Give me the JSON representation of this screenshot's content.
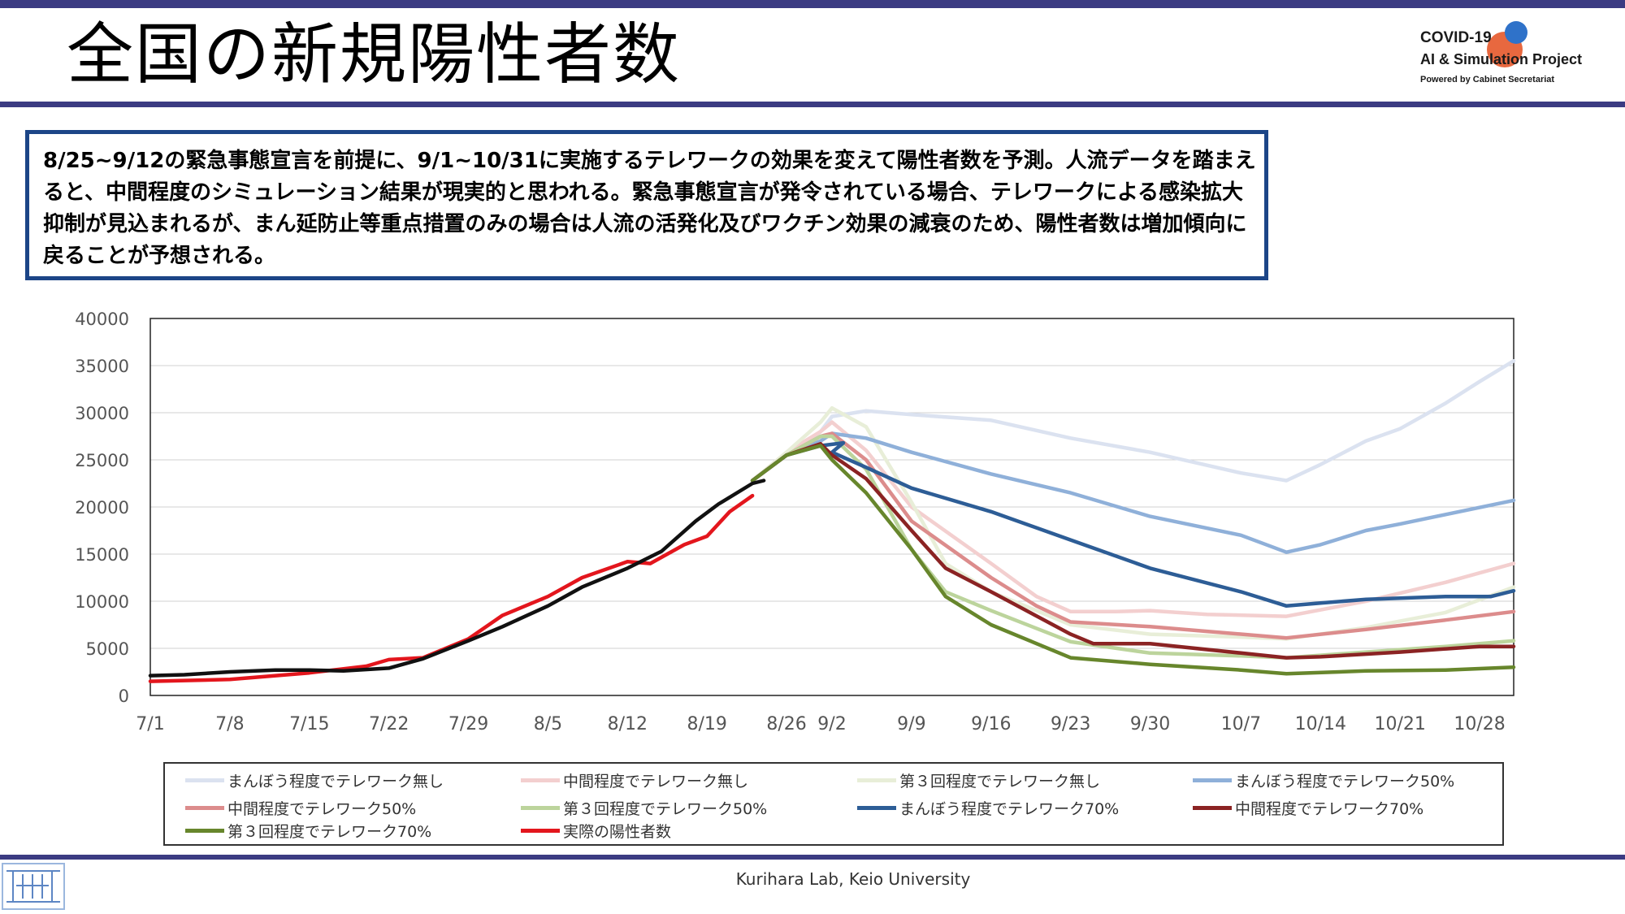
{
  "header": {
    "title": "全国の新規陽性者数",
    "brand_line1": "COVID-19",
    "brand_line2": "AI & Simulation Project",
    "brand_line3": "Powered by Cabinet Secretariat"
  },
  "summary": {
    "text": "8/25~9/12の緊急事態宣言を前提に、9/1~10/31に実施するテレワークの効果を変えて陽性者数を予測。人流データを踏まえると、中間程度のシミュレーション結果が現実的と思われる。緊急事態宣言が発令されている場合、テレワークによる感染拡大抑制が見込まれるが、まん延防止等重点措置のみの場合は人流の活発化及びワクチン効果の減衰のため、陽性者数は増加傾向に戻ることが予想される。"
  },
  "footer": {
    "text": "Kurihara Lab, Keio University"
  },
  "colors": {
    "band": "#3b3b82",
    "summary_border": "#1c4587",
    "brand_red": "#e8683f",
    "brand_blue": "#2f72c9"
  },
  "chart_data": {
    "type": "line",
    "x_start": "7/1",
    "x_end": "10/31",
    "x_ticks": [
      "7/1",
      "7/8",
      "7/15",
      "7/22",
      "7/29",
      "8/5",
      "8/12",
      "8/19",
      "8/26",
      "9/2",
      "9/9",
      "9/16",
      "9/23",
      "9/30",
      "10/7",
      "10/14",
      "10/21",
      "10/28"
    ],
    "ylim": [
      0,
      40000
    ],
    "y_ticks": [
      0,
      5000,
      10000,
      15000,
      20000,
      25000,
      30000,
      35000,
      40000
    ],
    "grid": true,
    "legend_position": "bottom",
    "series": [
      {
        "name": "まんぼう程度でテレワーク無し",
        "color": "#dbe2f0",
        "points": [
          [
            "8/23",
            22800
          ],
          [
            "8/26",
            25500
          ],
          [
            "8/29",
            28000
          ],
          [
            "9/2",
            29600
          ],
          [
            "9/5",
            30200
          ],
          [
            "9/9",
            29800
          ],
          [
            "9/16",
            29200
          ],
          [
            "9/23",
            27300
          ],
          [
            "9/30",
            25800
          ],
          [
            "10/7",
            23600
          ],
          [
            "10/11",
            22800
          ],
          [
            "10/14",
            24500
          ],
          [
            "10/18",
            27000
          ],
          [
            "10/21",
            28300
          ],
          [
            "10/25",
            31000
          ],
          [
            "10/28",
            33300
          ],
          [
            "10/31",
            35500
          ]
        ]
      },
      {
        "name": "中間程度でテレワーク無し",
        "color": "#f3cfcf",
        "points": [
          [
            "8/23",
            22800
          ],
          [
            "8/26",
            25800
          ],
          [
            "8/29",
            28000
          ],
          [
            "9/2",
            29000
          ],
          [
            "9/5",
            26000
          ],
          [
            "9/9",
            20000
          ],
          [
            "9/16",
            14000
          ],
          [
            "9/20",
            10500
          ],
          [
            "9/23",
            8900
          ],
          [
            "9/27",
            8900
          ],
          [
            "9/30",
            9000
          ],
          [
            "10/4",
            8600
          ],
          [
            "10/11",
            8400
          ],
          [
            "10/18",
            10000
          ],
          [
            "10/25",
            12000
          ],
          [
            "10/31",
            14000
          ]
        ]
      },
      {
        "name": "第３回程度でテレワーク無し",
        "color": "#e8eed8",
        "points": [
          [
            "8/23",
            22800
          ],
          [
            "8/26",
            25800
          ],
          [
            "8/29",
            29000
          ],
          [
            "9/2",
            30500
          ],
          [
            "9/5",
            28500
          ],
          [
            "9/9",
            20500
          ],
          [
            "9/12",
            14000
          ],
          [
            "9/16",
            11000
          ],
          [
            "9/23",
            7500
          ],
          [
            "9/30",
            6500
          ],
          [
            "10/7",
            6200
          ],
          [
            "10/11",
            6000
          ],
          [
            "10/18",
            7200
          ],
          [
            "10/25",
            8800
          ],
          [
            "10/31",
            11500
          ]
        ]
      },
      {
        "name": "まんぼう程度でテレワーク50%",
        "color": "#8fb0d9",
        "points": [
          [
            "8/23",
            22800
          ],
          [
            "8/26",
            25500
          ],
          [
            "8/29",
            27000
          ],
          [
            "9/2",
            27800
          ],
          [
            "9/5",
            27300
          ],
          [
            "9/9",
            25800
          ],
          [
            "9/16",
            23500
          ],
          [
            "9/23",
            21500
          ],
          [
            "9/30",
            19000
          ],
          [
            "10/7",
            17000
          ],
          [
            "10/11",
            15200
          ],
          [
            "10/14",
            16000
          ],
          [
            "10/18",
            17500
          ],
          [
            "10/21",
            18200
          ],
          [
            "10/25",
            19200
          ],
          [
            "10/31",
            20700
          ]
        ]
      },
      {
        "name": "中間程度でテレワーク50%",
        "color": "#dc8c8c",
        "points": [
          [
            "8/23",
            22800
          ],
          [
            "8/26",
            25500
          ],
          [
            "8/29",
            27500
          ],
          [
            "9/2",
            27800
          ],
          [
            "9/5",
            25000
          ],
          [
            "9/9",
            18500
          ],
          [
            "9/16",
            12500
          ],
          [
            "9/20",
            9500
          ],
          [
            "9/23",
            7800
          ],
          [
            "9/30",
            7300
          ],
          [
            "10/4",
            6800
          ],
          [
            "10/11",
            6100
          ],
          [
            "10/18",
            7000
          ],
          [
            "10/25",
            8000
          ],
          [
            "10/31",
            8900
          ]
        ]
      },
      {
        "name": "第３回程度でテレワーク50%",
        "color": "#bcd49c",
        "points": [
          [
            "8/23",
            22800
          ],
          [
            "8/26",
            25500
          ],
          [
            "8/29",
            27500
          ],
          [
            "9/2",
            27500
          ],
          [
            "9/5",
            24000
          ],
          [
            "9/9",
            15500
          ],
          [
            "9/12",
            11000
          ],
          [
            "9/16",
            9000
          ],
          [
            "9/23",
            5700
          ],
          [
            "9/30",
            4500
          ],
          [
            "10/7",
            4200
          ],
          [
            "10/11",
            4000
          ],
          [
            "10/18",
            4600
          ],
          [
            "10/25",
            5200
          ],
          [
            "10/31",
            5800
          ]
        ]
      },
      {
        "name": "まんぼう程度でテレワーク70%",
        "color": "#2d5d96",
        "points": [
          [
            "8/23",
            22800
          ],
          [
            "8/26",
            25500
          ],
          [
            "8/29",
            26500
          ],
          [
            "8/31",
            26800
          ],
          [
            "9/2",
            25800
          ],
          [
            "9/5",
            24200
          ],
          [
            "9/9",
            22000
          ],
          [
            "9/16",
            19500
          ],
          [
            "9/23",
            16500
          ],
          [
            "9/30",
            13500
          ],
          [
            "10/7",
            11000
          ],
          [
            "10/11",
            9500
          ],
          [
            "10/14",
            9800
          ],
          [
            "10/18",
            10200
          ],
          [
            "10/25",
            10500
          ],
          [
            "10/29",
            10500
          ],
          [
            "10/31",
            11100
          ]
        ]
      },
      {
        "name": "中間程度でテレワーク70%",
        "color": "#8b2323",
        "points": [
          [
            "8/23",
            22800
          ],
          [
            "8/26",
            25500
          ],
          [
            "8/29",
            26700
          ],
          [
            "9/2",
            25500
          ],
          [
            "9/5",
            23000
          ],
          [
            "9/9",
            17500
          ],
          [
            "9/12",
            13500
          ],
          [
            "9/16",
            11000
          ],
          [
            "9/23",
            6500
          ],
          [
            "9/25",
            5500
          ],
          [
            "9/30",
            5500
          ],
          [
            "10/7",
            4500
          ],
          [
            "10/11",
            4000
          ],
          [
            "10/14",
            4100
          ],
          [
            "10/21",
            4600
          ],
          [
            "10/28",
            5200
          ],
          [
            "10/31",
            5200
          ]
        ]
      },
      {
        "name": "第３回程度でテレワーク70%",
        "color": "#67862c",
        "points": [
          [
            "8/23",
            22800
          ],
          [
            "8/26",
            25500
          ],
          [
            "8/29",
            26500
          ],
          [
            "9/2",
            25000
          ],
          [
            "9/5",
            21500
          ],
          [
            "9/9",
            15500
          ],
          [
            "9/12",
            10500
          ],
          [
            "9/16",
            7500
          ],
          [
            "9/23",
            4000
          ],
          [
            "9/30",
            3300
          ],
          [
            "10/7",
            2700
          ],
          [
            "10/11",
            2300
          ],
          [
            "10/18",
            2600
          ],
          [
            "10/25",
            2700
          ],
          [
            "10/31",
            3000
          ]
        ]
      },
      {
        "name": "実際の陽性者数",
        "color": "#e3161d",
        "points": [
          [
            "7/1",
            1500
          ],
          [
            "7/8",
            1700
          ],
          [
            "7/15",
            2400
          ],
          [
            "7/20",
            3100
          ],
          [
            "7/22",
            3800
          ],
          [
            "7/25",
            4000
          ],
          [
            "7/29",
            6000
          ],
          [
            "8/1",
            8500
          ],
          [
            "8/5",
            10500
          ],
          [
            "8/8",
            12500
          ],
          [
            "8/12",
            14200
          ],
          [
            "8/14",
            14000
          ],
          [
            "8/17",
            16000
          ],
          [
            "8/19",
            16900
          ],
          [
            "8/21",
            19500
          ],
          [
            "8/23",
            21200
          ]
        ]
      },
      {
        "name": "",
        "color": "#111111",
        "points": [
          [
            "7/1",
            2100
          ],
          [
            "7/4",
            2200
          ],
          [
            "7/8",
            2500
          ],
          [
            "7/12",
            2700
          ],
          [
            "7/15",
            2700
          ],
          [
            "7/18",
            2600
          ],
          [
            "7/22",
            2900
          ],
          [
            "7/25",
            3900
          ],
          [
            "7/29",
            5800
          ],
          [
            "8/1",
            7300
          ],
          [
            "8/5",
            9500
          ],
          [
            "8/8",
            11500
          ],
          [
            "8/12",
            13500
          ],
          [
            "8/15",
            15300
          ],
          [
            "8/18",
            18500
          ],
          [
            "8/20",
            20300
          ],
          [
            "8/23",
            22500
          ],
          [
            "8/24",
            22800
          ]
        ]
      }
    ]
  }
}
